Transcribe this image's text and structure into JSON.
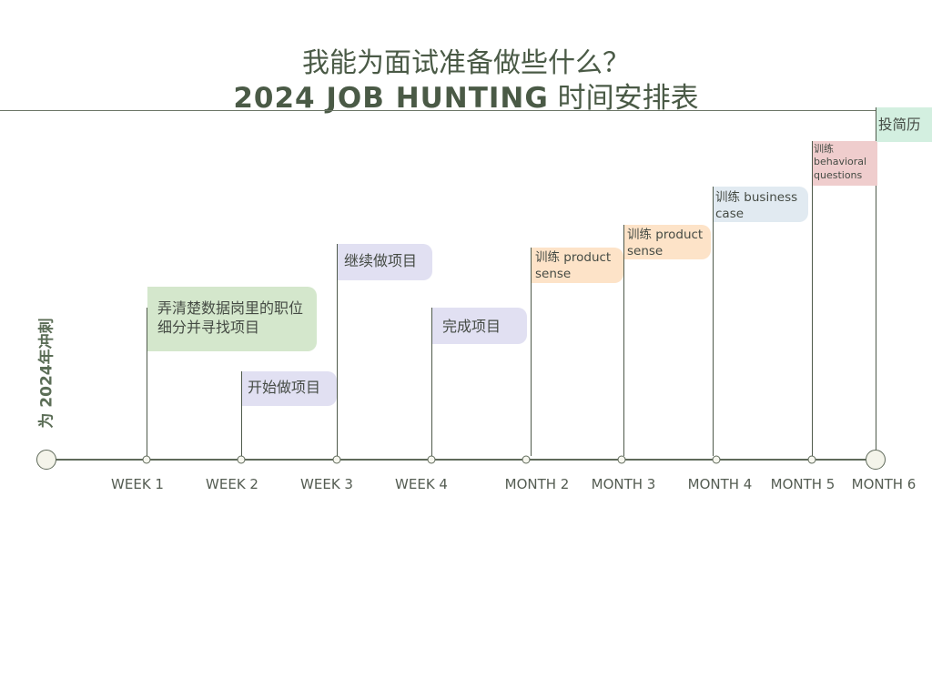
{
  "title": {
    "line1": "我能为面试准备做些什么？",
    "line2_en": "2024 JOB HUNTING",
    "line2_zh": " 时间安排表"
  },
  "side_label": "为 2024年冲刺",
  "timeline": {
    "ticks": [
      "WEEK 1",
      "WEEK 2",
      "WEEK 3",
      "WEEK 4",
      "MONTH 2",
      "MONTH 3",
      "MONTH 4",
      "MONTH 5",
      "MONTH 6"
    ]
  },
  "tasks": [
    {
      "text": "弄清楚数据岗里的职位细分并寻找项目",
      "milestone": "WEEK 1",
      "color": "#d4e7cc"
    },
    {
      "text": "开始做项目",
      "milestone": "WEEK 2",
      "color": "#e1e0f2"
    },
    {
      "text": "继续做项目",
      "milestone": "WEEK 3",
      "color": "#e1e0f2"
    },
    {
      "text": "完成项目",
      "milestone": "WEEK 4",
      "color": "#e1e0f2"
    },
    {
      "text": "训练 product sense",
      "milestone": "MONTH 2",
      "color": "#fde3c8"
    },
    {
      "text": "训练 product sense",
      "milestone": "MONTH 3",
      "color": "#fde3c8"
    },
    {
      "text": "训练 business case",
      "milestone": "MONTH 4",
      "color": "#e1eaf1"
    },
    {
      "text": "训练 behavioral questions",
      "milestone": "MONTH 5",
      "color": "#efcdcd"
    },
    {
      "text": "投简历",
      "milestone": "MONTH 6",
      "color": "#d3efe0"
    }
  ]
}
